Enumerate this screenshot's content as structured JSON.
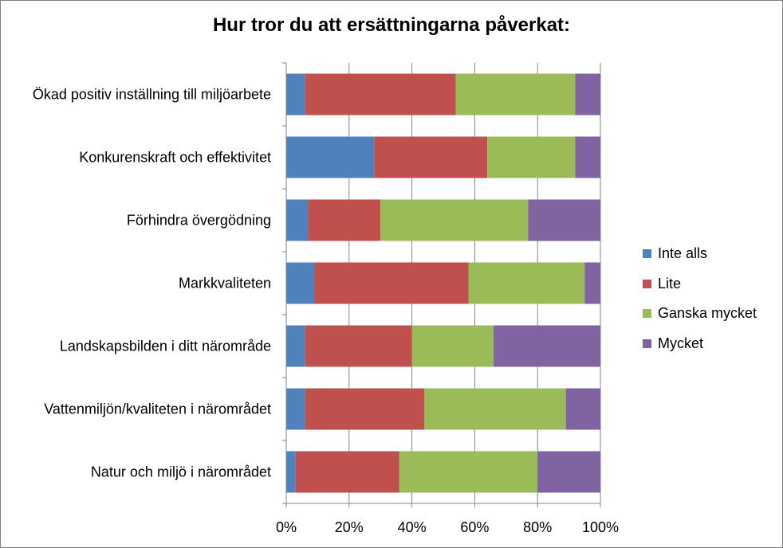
{
  "chart_data": {
    "type": "bar",
    "orientation": "horizontal",
    "stacked": "percent",
    "title": "Hur tror du att ersättningarna påverkat:",
    "categories": [
      "Ökad positiv inställning till miljöarbete",
      "Konkurenskraft och effektivitet",
      "Förhindra övergödning",
      "Markkvaliteten",
      "Landskapsbilden i ditt närområde",
      "Vattenmiljön/kvaliteten i närområdet",
      "Natur och miljö i närområdet"
    ],
    "series": [
      {
        "name": "Inte alls",
        "color": "#4f81bd",
        "values": [
          6,
          28,
          7,
          9,
          6,
          6,
          3
        ]
      },
      {
        "name": "Lite",
        "color": "#c0504d",
        "values": [
          48,
          36,
          23,
          49,
          34,
          38,
          33
        ]
      },
      {
        "name": "Ganska mycket",
        "color": "#9bbb59",
        "values": [
          38,
          28,
          47,
          37,
          26,
          45,
          44
        ]
      },
      {
        "name": "Mycket",
        "color": "#8064a2",
        "values": [
          8,
          8,
          23,
          5,
          34,
          11,
          20
        ]
      }
    ],
    "x_ticks": [
      "0%",
      "20%",
      "40%",
      "60%",
      "80%",
      "100%"
    ],
    "xlim": [
      0,
      100
    ],
    "grid": "vertical",
    "legend_position": "right"
  }
}
